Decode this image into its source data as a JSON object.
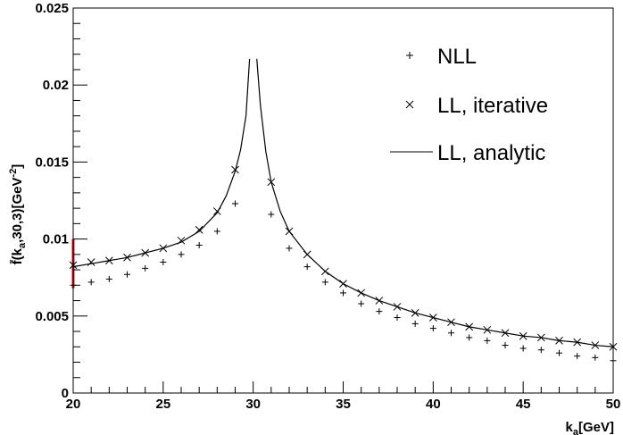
{
  "chart_data": {
    "type": "scatter",
    "xlabel": "k_a[GeV]",
    "ylabel": "f̄(k_a,30,3)[GeV^-2]",
    "xlim": [
      20,
      50
    ],
    "ylim": [
      0,
      0.025
    ],
    "grid": false,
    "legend_position": "top-right",
    "x_ticks": [
      20,
      25,
      30,
      35,
      40,
      45,
      50
    ],
    "x_tick_labels": [
      "20",
      "25",
      "30",
      "35",
      "40",
      "45",
      "50"
    ],
    "y_ticks": [
      0,
      0.005,
      0.01,
      0.015,
      0.02,
      0.025
    ],
    "y_tick_labels": [
      "0",
      "0.005",
      "0.01",
      "0.015",
      "0.02",
      "0.025"
    ],
    "series": [
      {
        "name": "NLL",
        "marker": "plus",
        "x": [
          20,
          21,
          22,
          23,
          24,
          25,
          26,
          27,
          28,
          29,
          31,
          32,
          33,
          34,
          35,
          36,
          37,
          38,
          39,
          40,
          41,
          42,
          43,
          44,
          45,
          46,
          47,
          48,
          49,
          50
        ],
        "y": [
          0.007,
          0.0072,
          0.0074,
          0.0077,
          0.0081,
          0.0085,
          0.009,
          0.0096,
          0.0105,
          0.0123,
          0.0116,
          0.0094,
          0.0082,
          0.0072,
          0.0065,
          0.0058,
          0.0053,
          0.0049,
          0.0045,
          0.0042,
          0.0039,
          0.0036,
          0.0034,
          0.0031,
          0.0029,
          0.0028,
          0.0026,
          0.0024,
          0.0023,
          0.0021
        ]
      },
      {
        "name": "LL, iterative",
        "marker": "cross",
        "x": [
          20,
          21,
          22,
          23,
          24,
          25,
          26,
          27,
          28,
          29,
          31,
          32,
          33,
          34,
          35,
          36,
          37,
          38,
          39,
          40,
          41,
          42,
          43,
          44,
          45,
          46,
          47,
          48,
          49,
          50
        ],
        "y": [
          0.0083,
          0.0085,
          0.0086,
          0.0088,
          0.0091,
          0.0094,
          0.0099,
          0.0106,
          0.0118,
          0.0145,
          0.0137,
          0.0105,
          0.009,
          0.0079,
          0.0071,
          0.0065,
          0.006,
          0.0056,
          0.0052,
          0.0049,
          0.0046,
          0.0043,
          0.0041,
          0.0039,
          0.0037,
          0.0036,
          0.0034,
          0.0033,
          0.0031,
          0.003
        ]
      },
      {
        "name": "LL, analytic",
        "marker": "line",
        "x": [
          20,
          21,
          22,
          23,
          24,
          25,
          26,
          27,
          28,
          28.5,
          29,
          29.3,
          29.6,
          29.8,
          30.2,
          30.4,
          30.7,
          31,
          31.5,
          32,
          33,
          34,
          35,
          36,
          37,
          38,
          39,
          40,
          41,
          42,
          43,
          44,
          45,
          46,
          47,
          48,
          49,
          50
        ],
        "y": [
          0.0082,
          0.0084,
          0.0086,
          0.0088,
          0.0091,
          0.0094,
          0.0098,
          0.0105,
          0.0117,
          0.0128,
          0.0144,
          0.0158,
          0.018,
          0.0217,
          0.0217,
          0.0187,
          0.0157,
          0.0137,
          0.0118,
          0.0105,
          0.009,
          0.0079,
          0.0071,
          0.0065,
          0.006,
          0.0056,
          0.0052,
          0.0049,
          0.0046,
          0.0043,
          0.0041,
          0.0039,
          0.0037,
          0.0036,
          0.0034,
          0.0033,
          0.0031,
          0.003
        ]
      }
    ],
    "error_band": {
      "x": 20,
      "y": [
        0.0068,
        0.01
      ],
      "color": "#e8141e"
    }
  }
}
